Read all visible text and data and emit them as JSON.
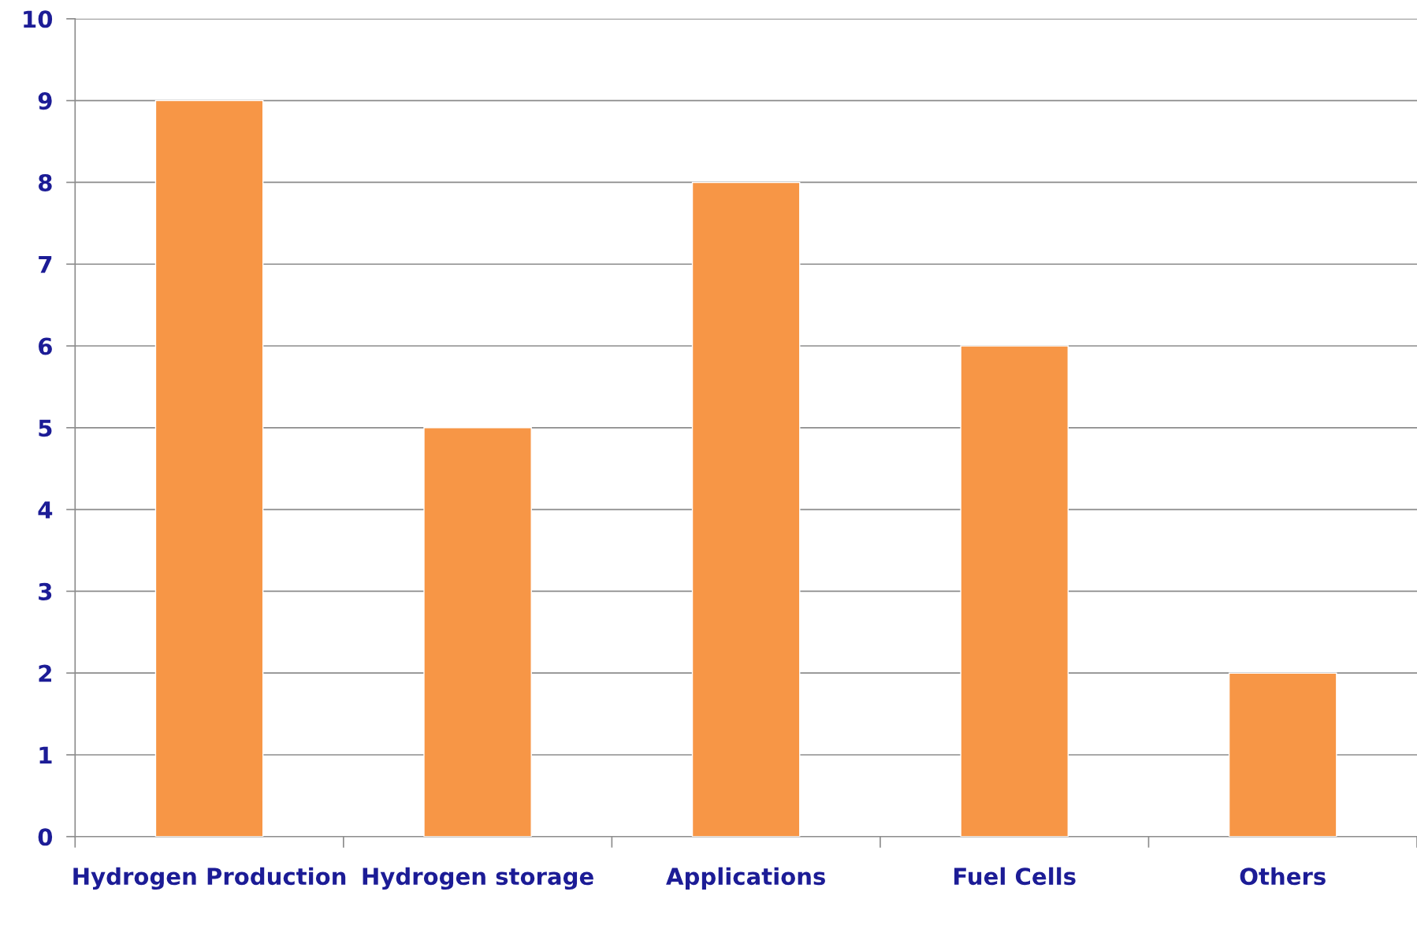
{
  "chart_data": {
    "type": "bar",
    "categories": [
      "Hydrogen Production",
      "Hydrogen storage",
      "Applications",
      "Fuel Cells",
      "Others"
    ],
    "values": [
      9,
      5,
      8,
      6,
      2
    ],
    "color": "#f79646",
    "ylim": [
      0,
      10
    ],
    "yticks": [
      0,
      1,
      2,
      3,
      4,
      5,
      6,
      7,
      8,
      9,
      10
    ],
    "grid": "y",
    "legend": false
  }
}
